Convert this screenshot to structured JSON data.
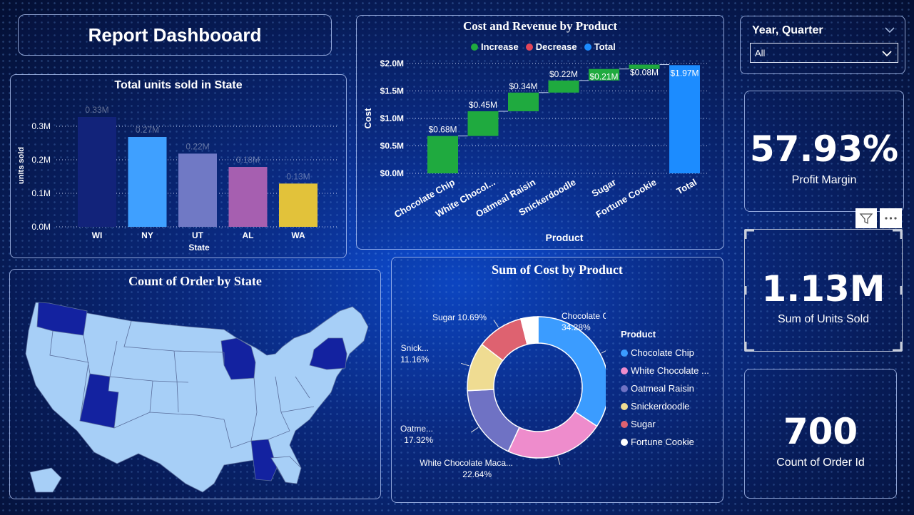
{
  "title": "Report Dashbooard",
  "filter": {
    "label": "Year, Quarter",
    "value": "All"
  },
  "units_chart": {
    "title": "Total units sold in State",
    "chart_data": {
      "type": "bar",
      "categories": [
        "WI",
        "NY",
        "UT",
        "AL",
        "WA"
      ],
      "values": [
        0.33,
        0.27,
        0.22,
        0.18,
        0.13
      ],
      "data_labels": [
        "0.33M",
        "0.27M",
        "0.22M",
        "0.18M",
        "0.13M"
      ],
      "colors": [
        "#12237a",
        "#3fa0ff",
        "#7079c5",
        "#a65fb0",
        "#e2c23a"
      ],
      "ylim": [
        0,
        0.33
      ],
      "yticks": [
        "0.0M",
        "0.1M",
        "0.2M",
        "0.3M"
      ],
      "xlabel": "State",
      "ylabel": "units sold"
    }
  },
  "waterfall_chart": {
    "title": "Cost and Revenue by Product",
    "legend": [
      {
        "label": "Increase",
        "color": "#1faa3f"
      },
      {
        "label": "Decrease",
        "color": "#e2465a"
      },
      {
        "label": "Total",
        "color": "#1c8cff"
      }
    ],
    "chart_data": {
      "type": "bar",
      "categories": [
        "Chocolate Chip",
        "White Chocol...",
        "Oatmeal Raisin",
        "Snickerdoodle",
        "Sugar",
        "Fortune Cookie",
        "Total"
      ],
      "values": [
        0.68,
        0.45,
        0.34,
        0.22,
        0.21,
        0.08,
        1.97
      ],
      "data_labels": [
        "$0.68M",
        "$0.45M",
        "$0.34M",
        "$0.22M",
        "$0.21M",
        "$0.08M",
        "$1.97M"
      ],
      "kinds": [
        "increase",
        "increase",
        "increase",
        "increase",
        "increase",
        "increase",
        "total"
      ],
      "ylim": [
        0,
        2.0
      ],
      "yticks": [
        "$0.0M",
        "$0.5M",
        "$1.0M",
        "$1.5M",
        "$2.0M"
      ],
      "xlabel": "Product",
      "ylabel": "Cost"
    }
  },
  "map_chart": {
    "title": "Count of Order by State",
    "highlighted_states": [
      "WA",
      "UT",
      "WI",
      "NY",
      "AL"
    ]
  },
  "donut_chart": {
    "title": "Sum of Cost by Product",
    "legend_title": "Product",
    "chart_data": {
      "type": "pie",
      "categories": [
        "Chocolate Chip",
        "White Chocolate ...",
        "Oatmeal Raisin",
        "Snickerdoodle",
        "Sugar",
        "Fortune Cookie"
      ],
      "values": [
        34.28,
        22.64,
        17.32,
        11.16,
        10.69,
        3.91
      ],
      "colors": [
        "#3b9cff",
        "#ee8ccc",
        "#6f72c4",
        "#efdc92",
        "#de6270",
        "#ffffff"
      ],
      "labels": [
        {
          "name": "Chocolate Chip",
          "pct": "34.28%"
        },
        {
          "name": "White Chocolate Maca...",
          "pct": "22.64%"
        },
        {
          "name": "Oatme...",
          "pct": "17.32%"
        },
        {
          "name": "Snick...",
          "pct": "11.16%"
        },
        {
          "name": "Sugar",
          "pct": "10.69%"
        }
      ]
    }
  },
  "kpis": {
    "profit_margin": {
      "value": "57.93%",
      "label": "Profit Margin"
    },
    "units_sold": {
      "value": "1.13M",
      "label": "Sum of Units Sold"
    },
    "order_count": {
      "value": "700",
      "label": "Count of Order Id"
    }
  },
  "icons": [
    "filter-icon",
    "more-options-icon",
    "chevron-down-icon"
  ]
}
